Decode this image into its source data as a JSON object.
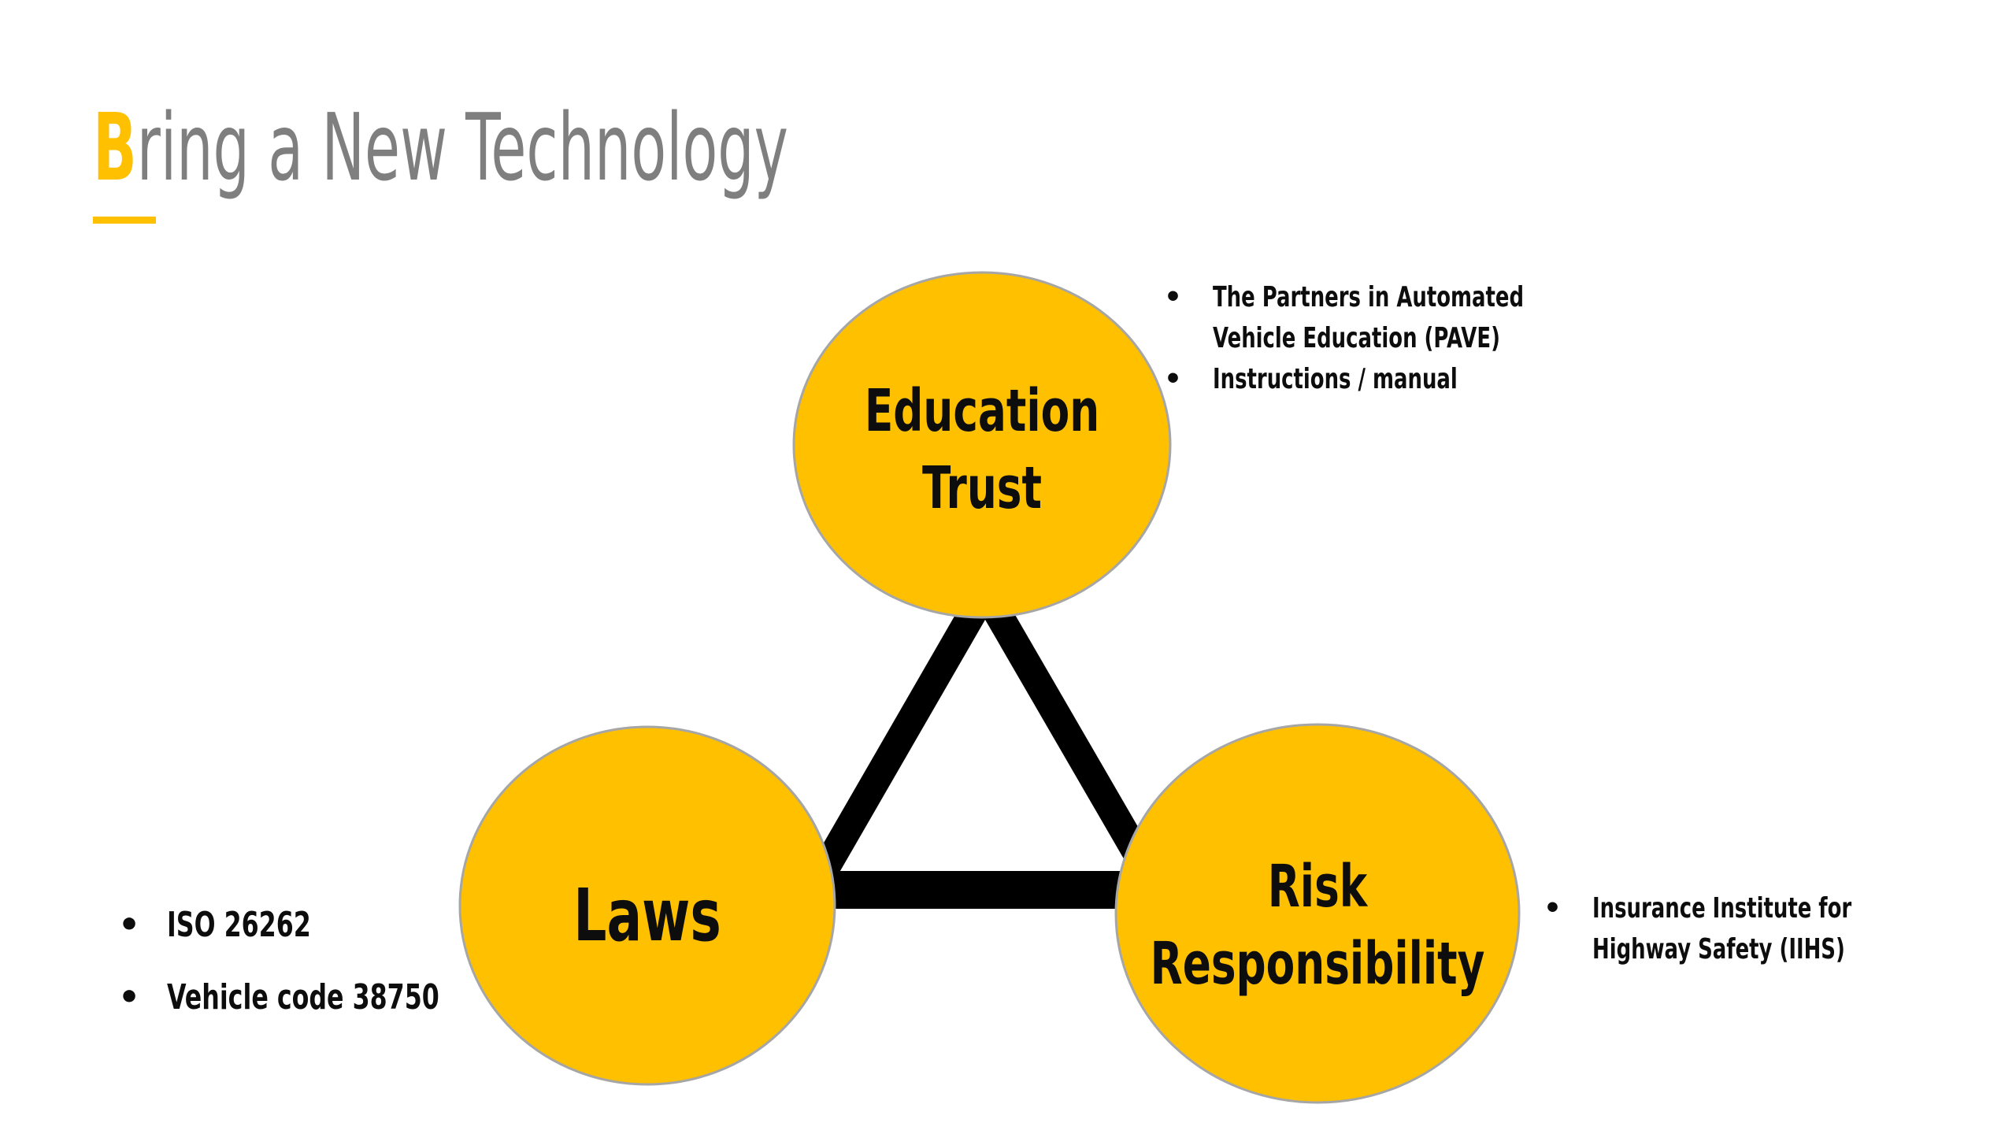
{
  "title": {
    "initial": "B",
    "rest": "ring a New Technology"
  },
  "diagram": {
    "nodes": [
      {
        "id": "education-trust",
        "lines": [
          "Education",
          "Trust"
        ]
      },
      {
        "id": "laws",
        "lines": [
          "Laws"
        ]
      },
      {
        "id": "risk-responsibility",
        "lines": [
          "Risk",
          "Responsibility"
        ]
      }
    ],
    "notes": {
      "education_trust": [
        [
          "The Partners in Automated",
          "Vehicle Education (PAVE)"
        ],
        [
          "Instructions / manual"
        ]
      ],
      "laws": [
        "ISO 26262",
        "Vehicle code 38750"
      ],
      "risk_responsibility": [
        [
          "Insurance Institute for",
          "Highway Safety (IIHS)"
        ]
      ]
    },
    "bullet_symbol": "•"
  },
  "colors": {
    "accent": "#ffc000",
    "title_gray": "#7f7f7f",
    "connector": "#000000",
    "circle_border": "#a6a6a6"
  }
}
